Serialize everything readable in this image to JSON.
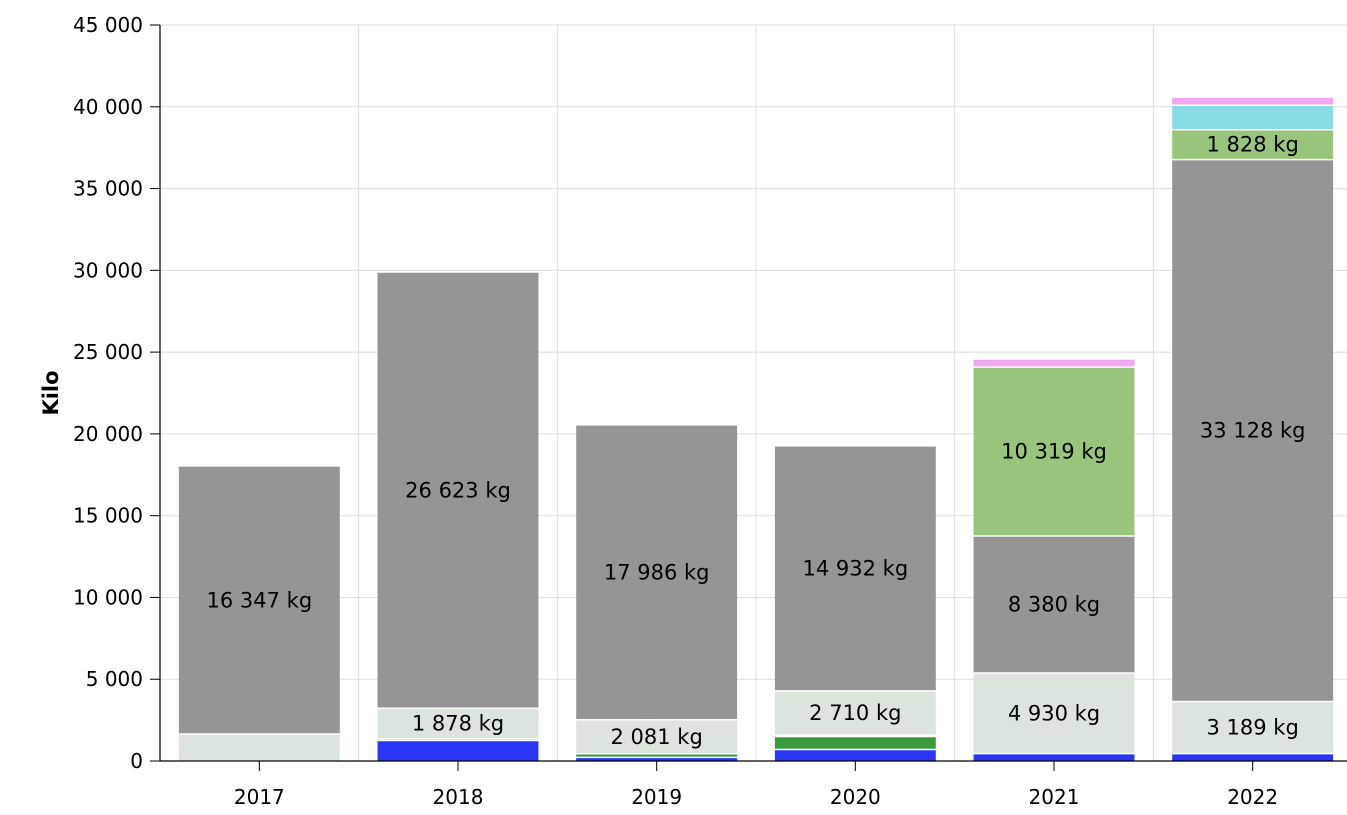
{
  "chart_data": {
    "type": "bar",
    "stacked": true,
    "ylabel": "Kilo",
    "xlabel": "",
    "ylim": [
      0,
      45000
    ],
    "yticks": [
      {
        "value": 0,
        "label": "0"
      },
      {
        "value": 5000,
        "label": "5 000"
      },
      {
        "value": 10000,
        "label": "10 000"
      },
      {
        "value": 15000,
        "label": "15 000"
      },
      {
        "value": 20000,
        "label": "20 000"
      },
      {
        "value": 25000,
        "label": "25 000"
      },
      {
        "value": 30000,
        "label": "30 000"
      },
      {
        "value": 35000,
        "label": "35 000"
      },
      {
        "value": 40000,
        "label": "40 000"
      },
      {
        "value": 45000,
        "label": "45 000"
      }
    ],
    "grid": true,
    "categories": [
      "2017",
      "2018",
      "2019",
      "2020",
      "2021",
      "2022"
    ],
    "series": [
      {
        "color": "#2b35f5",
        "values": [
          0,
          1250,
          220,
          700,
          450,
          450
        ]
      },
      {
        "color": "#3c9a3c",
        "values": [
          0,
          100,
          220,
          800,
          0,
          0
        ]
      },
      {
        "color": "#e07e7e",
        "values": [
          0,
          0,
          0,
          80,
          0,
          0
        ]
      },
      {
        "color": "#dbe5dc",
        "values": [
          1650,
          1878,
          2081,
          2710,
          4930,
          3189
        ],
        "labels": [
          "",
          "1 878 kg",
          "2 081 kg",
          "2 710 kg",
          "4 930 kg",
          "3 189 kg"
        ]
      },
      {
        "color": "#959595",
        "values": [
          16347,
          26623,
          17986,
          14932,
          8380,
          33128
        ],
        "labels": [
          "16 347 kg",
          "26 623 kg",
          "17 986 kg",
          "14 932 kg",
          "8 380 kg",
          "33 128 kg"
        ]
      },
      {
        "color": "#99c47c",
        "values": [
          0,
          0,
          0,
          0,
          10319,
          1828
        ],
        "labels": [
          "",
          "",
          "",
          "",
          "10 319 kg",
          "1 828 kg"
        ]
      },
      {
        "color": "#88dbe2",
        "values": [
          0,
          0,
          0,
          0,
          0,
          1500
        ]
      },
      {
        "color": "#f2a7f2",
        "values": [
          0,
          0,
          0,
          0,
          450,
          450
        ]
      }
    ]
  }
}
